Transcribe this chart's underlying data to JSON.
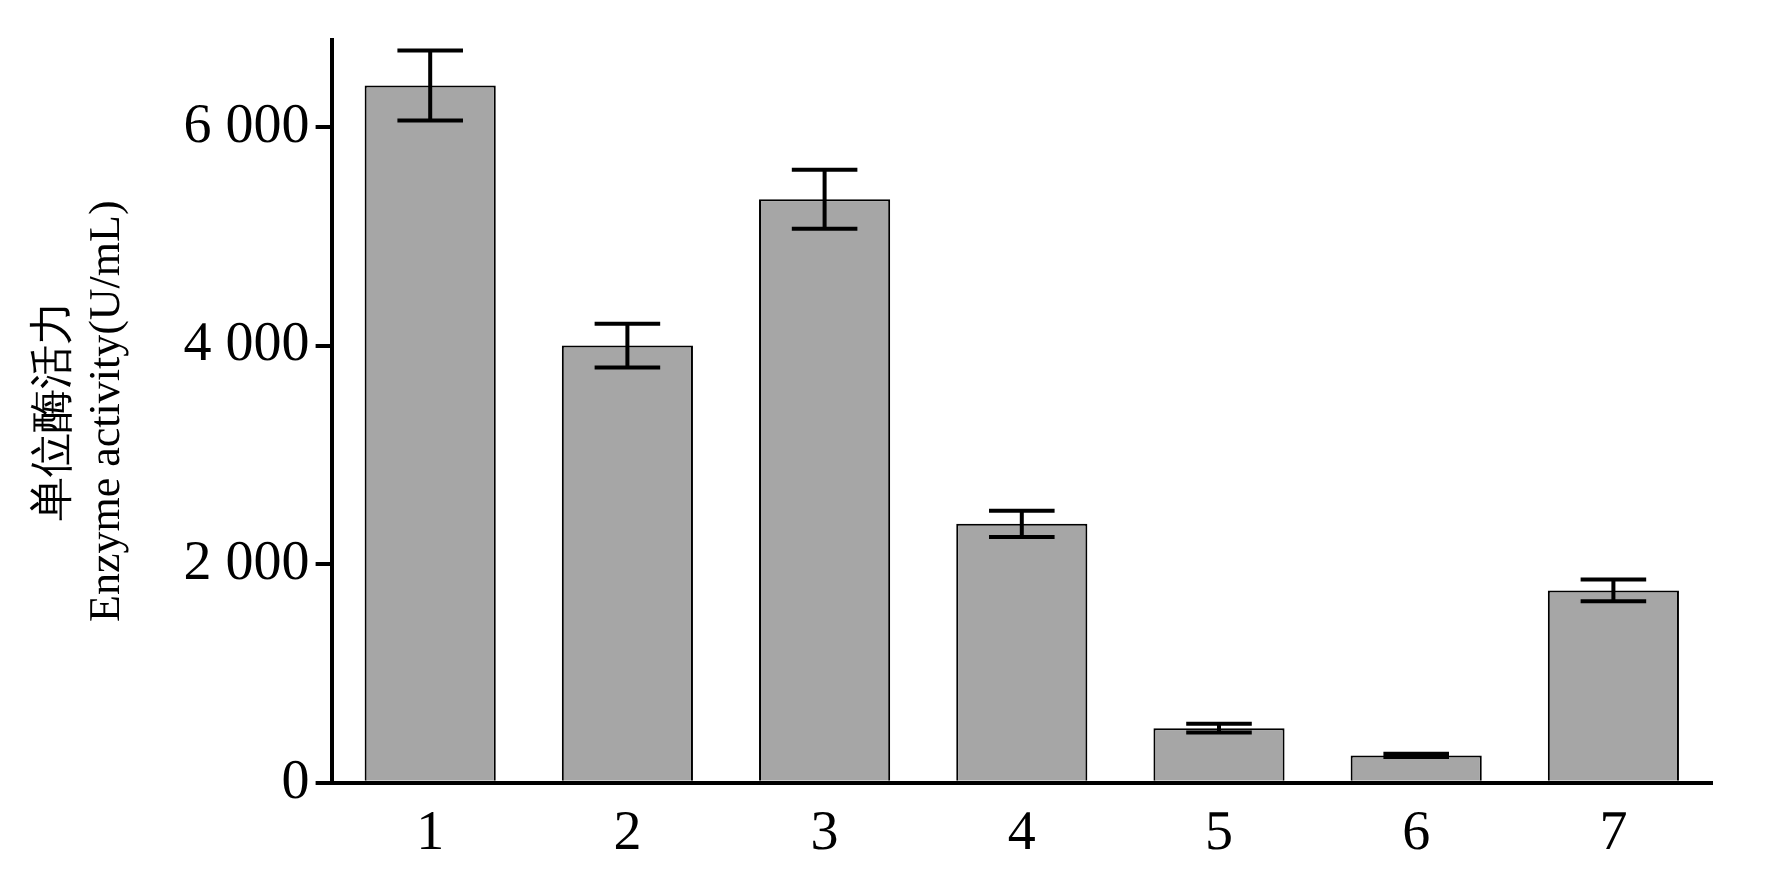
{
  "chart_data": {
    "type": "bar",
    "ylabel": "单位酶活力\nEnzyme activity(U/mL)",
    "categories": [
      "1",
      "2",
      "3",
      "4",
      "5",
      "6",
      "7"
    ],
    "values": [
      6380,
      4000,
      5340,
      2370,
      500,
      250,
      1760
    ],
    "errors": [
      320,
      200,
      270,
      120,
      40,
      15,
      100
    ],
    "color": "#a6a6a6",
    "ylim": [
      0,
      6800
    ],
    "yticks": [
      {
        "value": 0,
        "label": "0"
      },
      {
        "value": 2000,
        "label": "2 000"
      },
      {
        "value": 4000,
        "label": "4 000"
      },
      {
        "value": 6000,
        "label": "6 000"
      }
    ],
    "grid": false,
    "legend": false
  }
}
